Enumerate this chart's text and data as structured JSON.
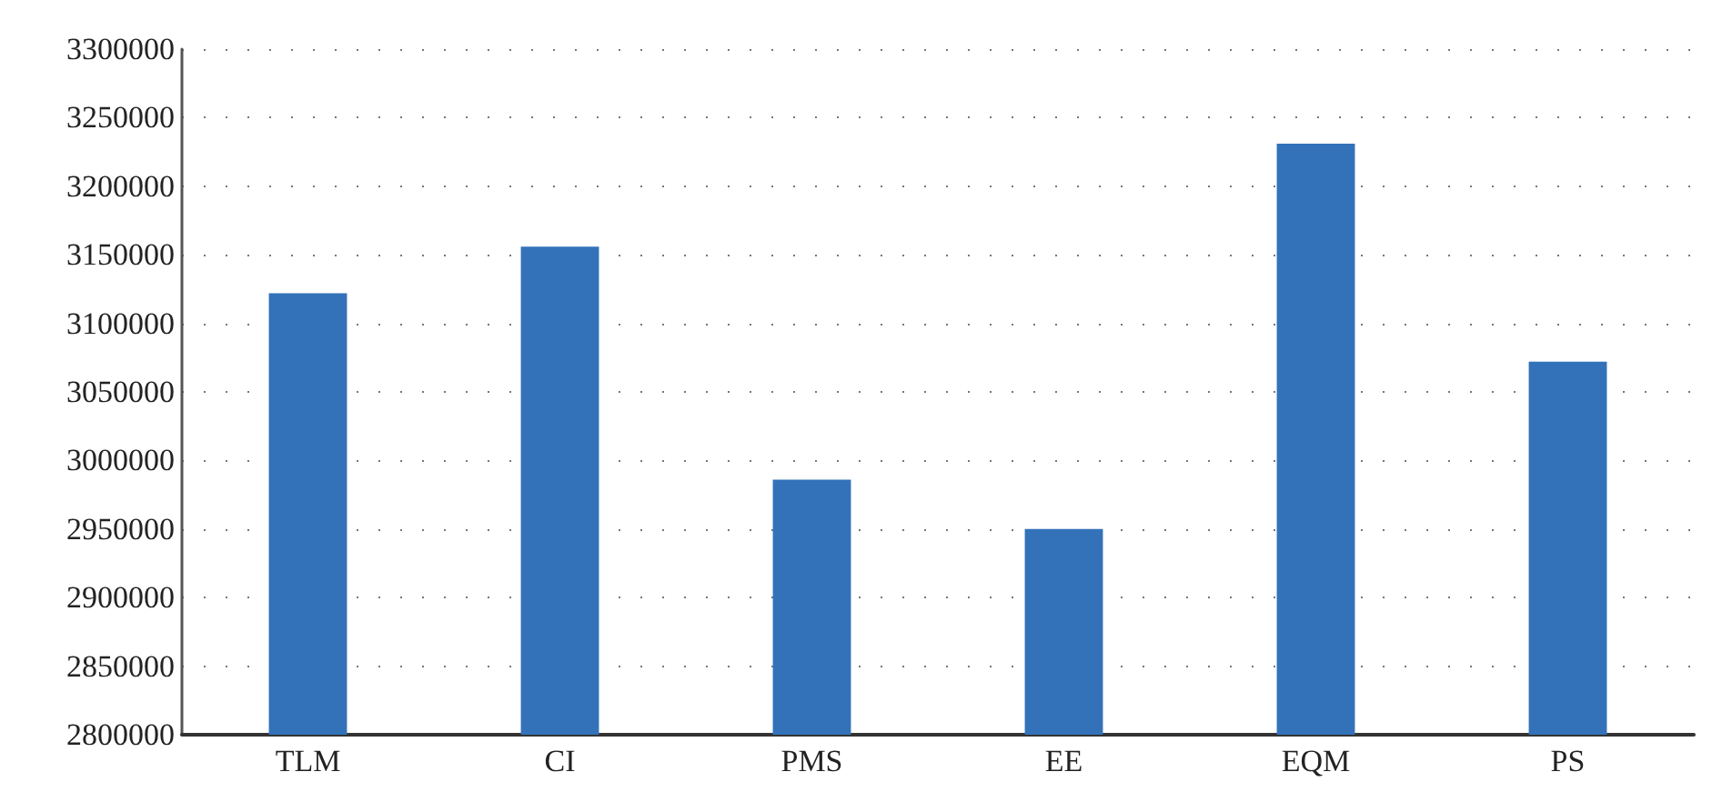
{
  "chart_data": {
    "type": "bar",
    "categories": [
      "TLM",
      "CI",
      "PMS",
      "EE",
      "EQM",
      "PS"
    ],
    "values": [
      3122000,
      3156000,
      2986000,
      2950000,
      3231000,
      3072000
    ],
    "color": "#3372b9",
    "ylim": [
      2800000,
      3300000
    ],
    "yticks": [
      2800000,
      2850000,
      2900000,
      2950000,
      3000000,
      3050000,
      3100000,
      3150000,
      3200000,
      3250000,
      3300000
    ],
    "grid": "y",
    "line_style": "dotted"
  }
}
